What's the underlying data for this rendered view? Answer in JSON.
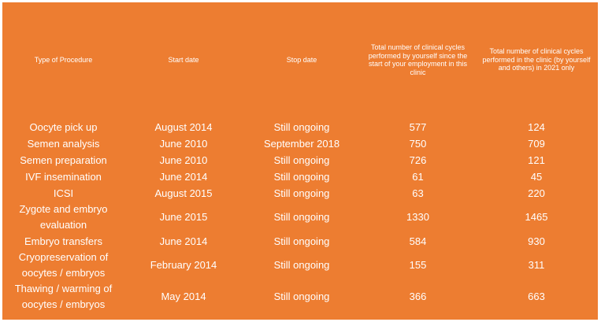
{
  "table": {
    "headers": [
      "Type of Procedure",
      "Start date",
      "Stop date",
      "Total number of clinical cycles performed by yourself since the start of your employment in this clinic",
      "Total number of clinical cycles performed in the clinic (by yourself and others) in 2021 only"
    ],
    "rows": [
      [
        "Oocyte pick up",
        "August 2014",
        "Still ongoing",
        "577",
        "124"
      ],
      [
        "Semen analysis",
        "June 2010",
        "September 2018",
        "750",
        "709"
      ],
      [
        "Semen preparation",
        "June 2010",
        "Still ongoing",
        "726",
        "121"
      ],
      [
        "IVF insemination",
        "June 2014",
        "Still ongoing",
        "61",
        "45"
      ],
      [
        "ICSI",
        "August 2015",
        "Still ongoing",
        "63",
        "220"
      ],
      [
        "Zygote and embryo evaluation",
        "June 2015",
        "Still ongoing",
        "1330",
        "1465"
      ],
      [
        "Embryo transfers",
        "June 2014",
        "Still ongoing",
        "584",
        "930"
      ],
      [
        "Cryopreservation of oocytes / embryos",
        "February 2014",
        "Still ongoing",
        "155",
        "311"
      ],
      [
        "Thawing / warming of oocytes / embryos",
        "May 2014",
        "Still ongoing",
        "366",
        "663"
      ]
    ]
  },
  "colors": {
    "background": "#ED7D31",
    "text": "#FFFFFF"
  }
}
